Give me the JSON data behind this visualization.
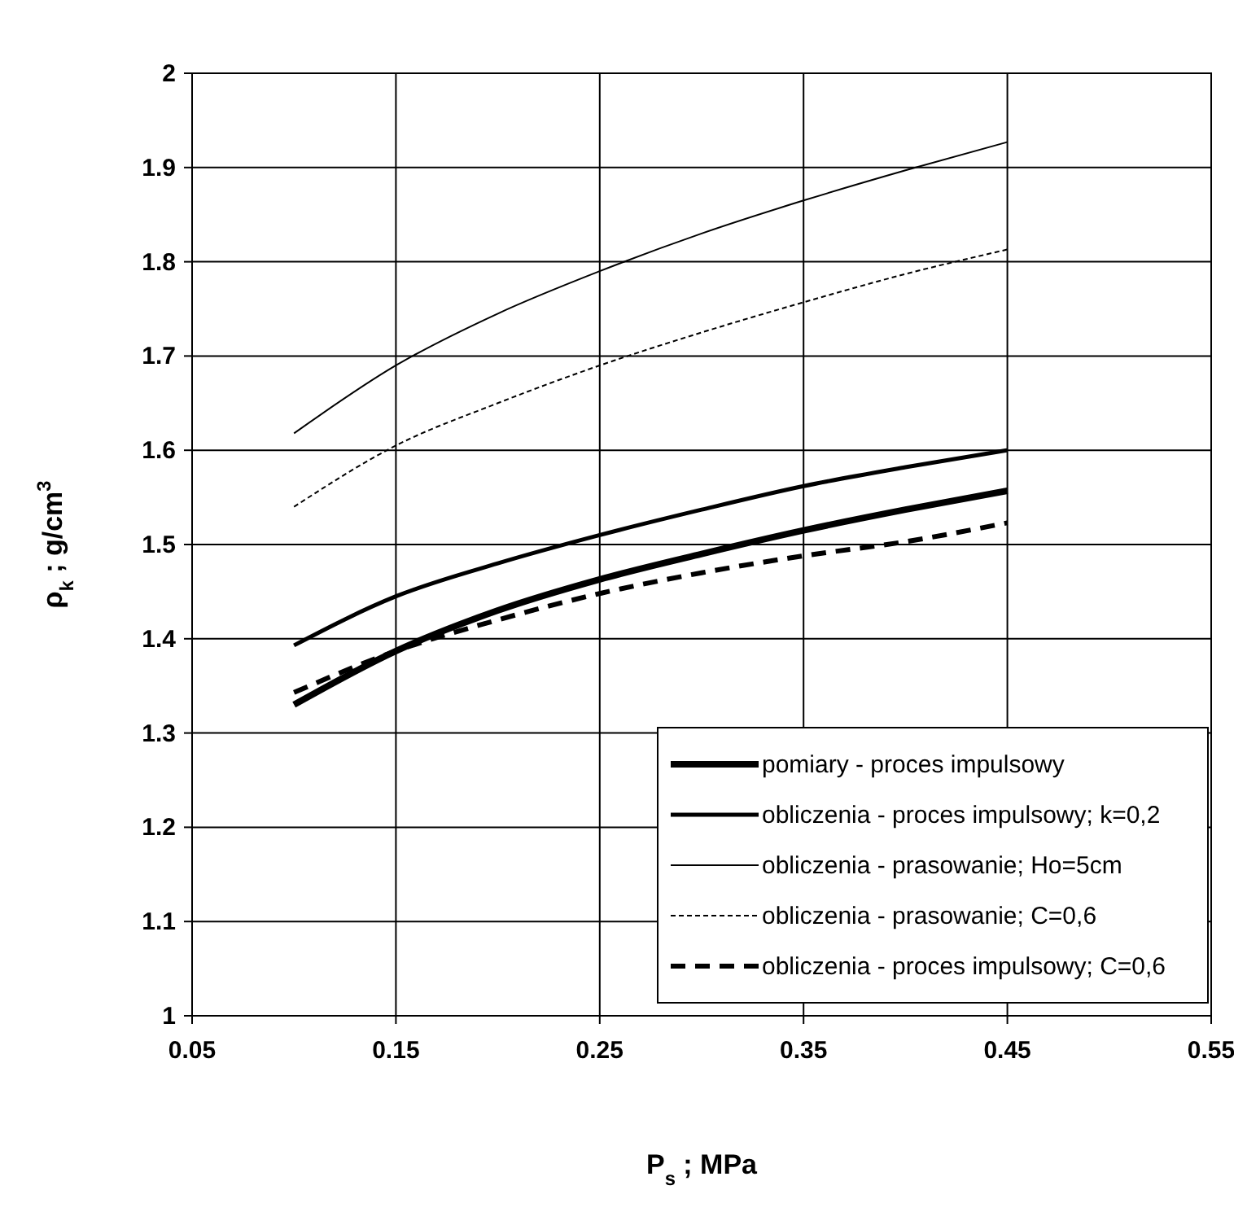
{
  "chart_data": {
    "type": "line",
    "xlabel": "P$_{s}$ ; MPa",
    "ylabel": "ρ$_{k}$ ; g/cm$^{3}$",
    "x": [
      0.1,
      0.15,
      0.2,
      0.25,
      0.3,
      0.35,
      0.4,
      0.45
    ],
    "xlim": [
      0.05,
      0.55
    ],
    "xticks": [
      0.05,
      0.15,
      0.25,
      0.35,
      0.45,
      0.55
    ],
    "ylim": [
      1,
      2
    ],
    "yticks": [
      1,
      1.1,
      1.2,
      1.3,
      1.4,
      1.5,
      1.6,
      1.7,
      1.8,
      1.9,
      2
    ],
    "grid": true,
    "legend": "bottom right",
    "series": [
      {
        "name": "pomiary - proces impulsowy",
        "color": "#000000",
        "line_style": "solid",
        "values": [
          1.33,
          1.387,
          1.43,
          1.463,
          1.49,
          1.515,
          1.537,
          1.557
        ]
      },
      {
        "name": "obliczenia - proces impulsowy; k=0,2",
        "color": "#000000",
        "line_style": "solid",
        "values": [
          1.393,
          1.445,
          1.48,
          1.51,
          1.537,
          1.562,
          1.582,
          1.6
        ]
      },
      {
        "name": "obliczenia - prasowanie; Ho=5cm",
        "color": "#000000",
        "line_style": "solid",
        "values": [
          1.618,
          1.69,
          1.745,
          1.79,
          1.83,
          1.865,
          1.897,
          1.927
        ]
      },
      {
        "name": "obliczenia - prasowanie; C=0,6",
        "color": "#000000",
        "line_style": "dashed",
        "values": [
          1.54,
          1.605,
          1.65,
          1.69,
          1.725,
          1.757,
          1.787,
          1.813
        ]
      },
      {
        "name": "obliczenia - proces impulsowy; C=0,6",
        "color": "#000000",
        "line_style": "dashed",
        "values": [
          1.343,
          1.387,
          1.42,
          1.448,
          1.47,
          1.488,
          1.503,
          1.523
        ]
      }
    ]
  }
}
